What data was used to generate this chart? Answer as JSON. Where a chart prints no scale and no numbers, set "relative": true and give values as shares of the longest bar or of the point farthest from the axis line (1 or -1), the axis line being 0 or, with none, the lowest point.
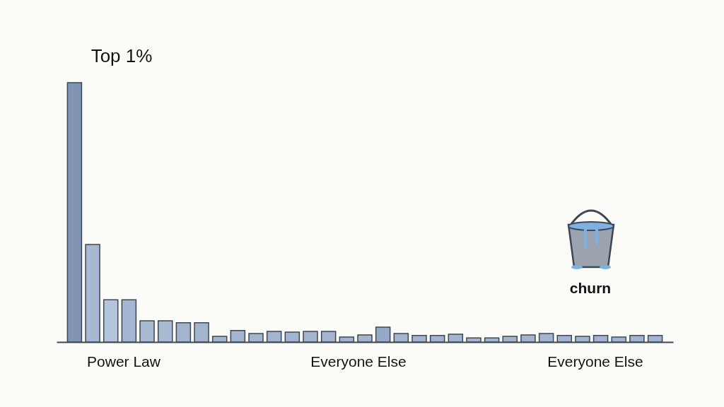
{
  "chart_data": {
    "type": "bar",
    "relative": true,
    "categories": [
      null,
      null,
      null,
      null,
      null,
      null,
      null,
      null,
      null,
      null,
      null,
      null,
      null,
      null,
      null,
      null,
      null,
      null,
      null,
      null,
      null,
      null,
      null,
      null,
      null,
      null,
      null,
      null,
      null,
      null,
      null,
      null,
      null
    ],
    "values": [
      1,
      0.376,
      0.163,
      0.163,
      0.082,
      0.082,
      0.074,
      0.074,
      0.022,
      0.044,
      0.033,
      0.041,
      0.038,
      0.041,
      0.041,
      0.019,
      0.027,
      0.057,
      0.033,
      0.025,
      0.025,
      0.03,
      0.016,
      0.016,
      0.022,
      0.027,
      0.033,
      0.025,
      0.022,
      0.025,
      0.019,
      0.025,
      0.025
    ],
    "colors": [
      "#8094b4",
      "#a6b8d4",
      "#b4c4dc",
      "#a3b5d0",
      "#a9bad3",
      "#a9bad3",
      "#a3b4cf",
      "#a3b4cf",
      "#a3b4cf",
      "#a3b4cf",
      "#a3b4cf",
      "#a3b4cf",
      "#a3b4cf",
      "#a3b4cf",
      "#a3b4cf",
      "#a3b4cf",
      "#a3b4cf",
      "#95a8c6",
      "#a3b4cf",
      "#a3b4cf",
      "#a3b4cf",
      "#a3b4cf",
      "#a3b4cf",
      "#a3b4cf",
      "#a3b4cf",
      "#a3b4cf",
      "#a3b4cf",
      "#a3b4cf",
      "#a3b4cf",
      "#a3b4cf",
      "#a3b4cf",
      "#a3b4cf",
      "#a3b4cf"
    ],
    "annotations": [
      "Top 1%",
      "Power Law",
      "Everyone Else",
      "Everyone Else",
      "churn"
    ]
  }
}
